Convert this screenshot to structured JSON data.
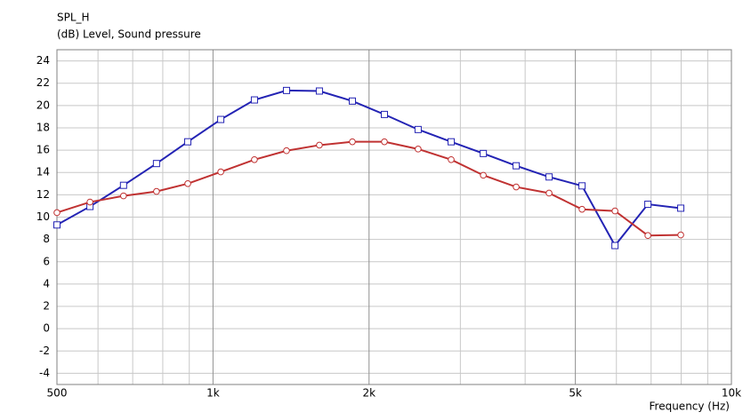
{
  "chart_data": {
    "type": "line",
    "title": "SPL_H",
    "subtitle": "(dB)  Level, Sound pressure",
    "x_label": "Frequency  (Hz)",
    "x": [
      500,
      579,
      672,
      778,
      894,
      1035,
      1202,
      1386,
      1604,
      1857,
      2141,
      2487,
      2880,
      3322,
      3844,
      4449,
      5150,
      5962,
      6900,
      7985
    ],
    "series": [
      {
        "color": "#2323b4",
        "marker": "square",
        "values": [
          9.3,
          10.95,
          12.85,
          14.8,
          16.75,
          18.75,
          20.5,
          21.35,
          21.3,
          20.4,
          19.2,
          17.85,
          16.75,
          15.7,
          14.6,
          13.6,
          12.8,
          7.45,
          11.15,
          10.8
        ]
      },
      {
        "color": "#c03232",
        "marker": "circle",
        "values": [
          10.4,
          11.35,
          11.9,
          12.3,
          13.0,
          14.05,
          15.15,
          15.95,
          16.45,
          16.75,
          16.75,
          16.1,
          15.15,
          13.75,
          12.7,
          12.15,
          10.7,
          10.55,
          8.35,
          8.4
        ]
      }
    ],
    "xscale": "log",
    "xlim": [
      500,
      10000
    ],
    "xticks": [
      500,
      {
        "value": 1000,
        "label": "1k"
      },
      {
        "value": 2000,
        "label": "2k"
      },
      {
        "value": 5000,
        "label": "5k"
      },
      {
        "value": 10000,
        "label": "10k"
      }
    ],
    "minor_xticks": [
      600,
      700,
      800,
      900,
      3000,
      4000,
      6000,
      7000,
      8000,
      9000
    ],
    "ylim": [
      -5,
      25
    ],
    "yticks": [
      -4,
      -2,
      0,
      2,
      4,
      6,
      8,
      10,
      12,
      14,
      16,
      18,
      20,
      22,
      24
    ],
    "grid": true
  }
}
